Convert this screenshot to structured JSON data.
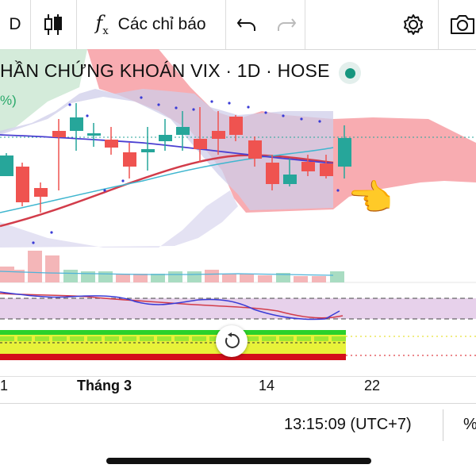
{
  "toolbar": {
    "left_partial": "D",
    "indicators_label": "Các chỉ báo"
  },
  "chart": {
    "title": "HẦN CHỨNG KHOÁN VIX · 1D · HOSE",
    "pct_badge": "%)",
    "pointer_emoji": "👈",
    "status_color": "#16967e"
  },
  "xaxis": {
    "labels": [
      "1",
      "Tháng 3",
      "14",
      "22"
    ]
  },
  "status_bar": {
    "time": "13:15:09 (UTC+7)",
    "pct": "%"
  },
  "colors": {
    "up": "#26a69a",
    "down": "#ef5350",
    "cloud_red": "#f59aa0",
    "cloud_lavender": "#c9c8e6"
  }
}
